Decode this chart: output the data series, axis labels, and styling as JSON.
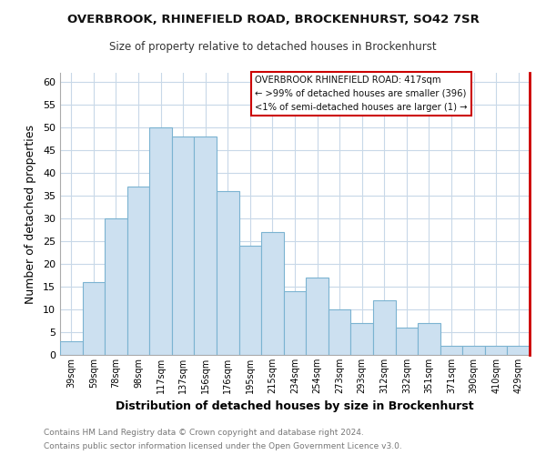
{
  "title1": "OVERBROOK, RHINEFIELD ROAD, BROCKENHURST, SO42 7SR",
  "title2": "Size of property relative to detached houses in Brockenhurst",
  "xlabel": "Distribution of detached houses by size in Brockenhurst",
  "ylabel": "Number of detached properties",
  "bin_labels": [
    "39sqm",
    "59sqm",
    "78sqm",
    "98sqm",
    "117sqm",
    "137sqm",
    "156sqm",
    "176sqm",
    "195sqm",
    "215sqm",
    "234sqm",
    "254sqm",
    "273sqm",
    "293sqm",
    "312sqm",
    "332sqm",
    "351sqm",
    "371sqm",
    "390sqm",
    "410sqm",
    "429sqm"
  ],
  "bar_heights": [
    3,
    16,
    30,
    37,
    50,
    48,
    48,
    36,
    24,
    27,
    14,
    17,
    10,
    7,
    12,
    6,
    7,
    2,
    2,
    2,
    2
  ],
  "bar_color": "#cce0f0",
  "bar_edge_color": "#7bb3d1",
  "ylim": [
    0,
    62
  ],
  "yticks": [
    0,
    5,
    10,
    15,
    20,
    25,
    30,
    35,
    40,
    45,
    50,
    55,
    60
  ],
  "marker_color": "#cc0000",
  "annotation_title": "OVERBROOK RHINEFIELD ROAD: 417sqm",
  "annotation_line1": "← >99% of detached houses are smaller (396)",
  "annotation_line2": "<1% of semi-detached houses are larger (1) →",
  "footer1": "Contains HM Land Registry data © Crown copyright and database right 2024.",
  "footer2": "Contains public sector information licensed under the Open Government Licence v3.0.",
  "bg_color": "#ffffff",
  "plot_bg_color": "#ffffff",
  "grid_color": "#c8d8e8"
}
